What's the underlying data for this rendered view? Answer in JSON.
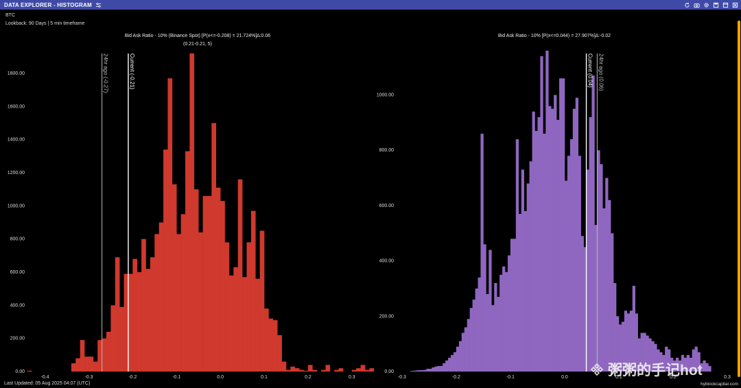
{
  "header": {
    "title": "DATA EXPLORER - HISTOGRAM",
    "tool_icons": [
      "settings-sliders-icon",
      "refresh-icon",
      "camera-icon",
      "gear-icon",
      "save-icon",
      "window-icon",
      "close-icon"
    ]
  },
  "meta": {
    "ticker": "BTC",
    "lookback": "Lookback: 90 Days | 5 min timeframe",
    "last_updated": "Last Updated: 05 Aug 2025 04:07 (UTC)",
    "site": "hyblockcapital.com"
  },
  "watermark": {
    "text": "粥粥的手记hot"
  },
  "colors": {
    "topbar": "#3f4aa6",
    "left_bars": "#d0392d",
    "right_bars": "#8f67c0",
    "current_line": "#ffffff",
    "ago_line": "#bbbbbb"
  },
  "chart_data": [
    {
      "type": "bar",
      "title": "Bid Ask Ratio - 10% (Binance Spot) [P(x<=-0.208) = 21.724%]∆:0.06",
      "subtitle": "(0.21-0.21, 5)",
      "xlim": [
        -0.44,
        0.33
      ],
      "ylim": [
        0,
        1920
      ],
      "xticks": [
        -0.4,
        -0.3,
        -0.2,
        -0.1,
        0.0,
        0.1,
        0.2,
        0.3
      ],
      "xtick_labels": [
        "-0.4",
        "-0.3",
        "-0.2",
        "-0.1",
        "0.0",
        "0.1",
        "0.2",
        "0.3"
      ],
      "yticks": [
        0,
        200,
        400,
        600,
        800,
        1000,
        1200,
        1400,
        1600,
        1800
      ],
      "ytick_labels": [
        "0.00",
        "200.00",
        "400.00",
        "600.00",
        "800.00",
        "1000.00",
        "1200.00",
        "1400.00",
        "1600.00",
        "1800.00"
      ],
      "bin_start": -0.44,
      "bin_width": 0.01,
      "values": [
        5,
        0,
        0,
        0,
        0,
        0,
        0,
        0,
        0,
        0,
        50,
        80,
        190,
        90,
        90,
        60,
        190,
        200,
        240,
        400,
        690,
        390,
        590,
        590,
        680,
        600,
        800,
        620,
        690,
        830,
        900,
        1340,
        1770,
        1130,
        830,
        950,
        1330,
        1920,
        1100,
        840,
        1060,
        1060,
        1500,
        1110,
        1030,
        780,
        580,
        630,
        1160,
        570,
        780,
        970,
        560,
        850,
        380,
        320,
        310,
        220,
        60,
        10,
        30,
        20,
        10,
        5,
        40,
        10,
        0,
        10,
        40,
        0,
        10,
        20,
        0,
        0,
        10,
        20,
        40,
        10,
        20,
        0
      ],
      "vlines": [
        {
          "x": -0.27,
          "label": "24hr ago (-0.27)",
          "role": "ago"
        },
        {
          "x": -0.21,
          "label": "Current (-0.21)",
          "role": "current"
        }
      ]
    },
    {
      "type": "bar",
      "title": "Bid Ask Ratio - 10% [P(x<=0.044) = 27.907%]∆:-0.02",
      "subtitle": "",
      "xlim": [
        -0.31,
        0.3
      ],
      "ylim": [
        0,
        1150
      ],
      "xticks": [
        -0.3,
        -0.2,
        -0.1,
        0.0,
        0.1,
        0.2,
        0.3
      ],
      "xtick_labels": [
        "-0.3",
        "-0.2",
        "-0.1",
        "0.0",
        "0.1",
        "0.2",
        "0.3"
      ],
      "yticks": [
        0,
        200,
        400,
        600,
        800,
        1000
      ],
      "ytick_labels": [
        "0.00",
        "200.00",
        "400.00",
        "600.00",
        "800.00",
        "1000.00"
      ],
      "bin_start": -0.31,
      "bin_width": 0.005,
      "values": [
        0,
        0,
        0,
        0,
        0,
        2,
        3,
        4,
        5,
        5,
        6,
        10,
        10,
        15,
        18,
        20,
        20,
        30,
        40,
        50,
        60,
        70,
        90,
        110,
        140,
        160,
        190,
        230,
        260,
        300,
        340,
        860,
        460,
        280,
        440,
        240,
        320,
        270,
        350,
        380,
        360,
        420,
        480,
        480,
        840,
        570,
        730,
        580,
        680,
        760,
        940,
        870,
        920,
        1140,
        860,
        1160,
        960,
        950,
        1000,
        910,
        1060,
        1060,
        690,
        780,
        840,
        950,
        990,
        780,
        490,
        450,
        730,
        920,
        1070,
        530,
        800,
        750,
        590,
        700,
        620,
        500,
        320,
        200,
        170,
        180,
        220,
        210,
        220,
        310,
        210,
        120,
        140,
        140,
        130,
        120,
        110,
        100,
        80,
        70,
        60,
        90,
        80,
        50,
        40,
        50,
        40,
        60,
        50,
        60,
        50,
        80,
        90,
        70,
        30,
        40,
        30,
        20
      ],
      "vlines": [
        {
          "x": 0.06,
          "label": "24hr ago (0.06)",
          "role": "ago"
        },
        {
          "x": 0.04,
          "label": "Current (0.04)",
          "role": "current"
        }
      ]
    }
  ]
}
